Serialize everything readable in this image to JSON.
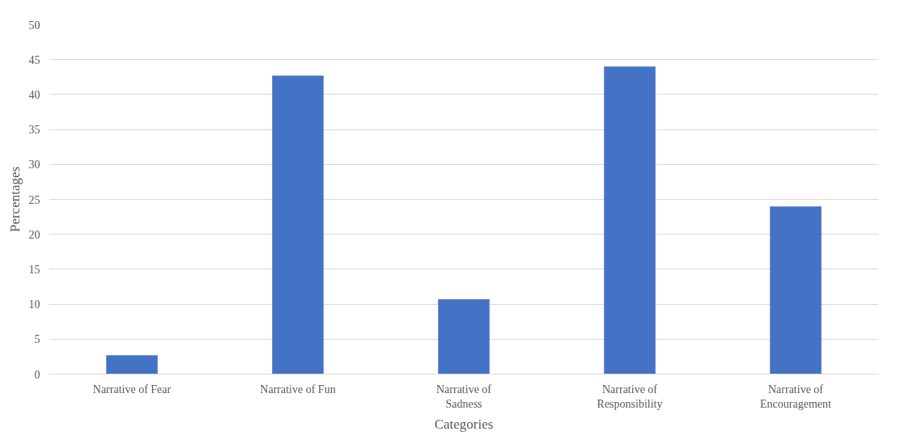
{
  "chart_data": {
    "type": "bar",
    "xlabel": "Categories",
    "ylabel": "Percentages",
    "categories": [
      "Narrative of Fear",
      "Narrative of Fun",
      "Narrative of Sadness",
      "Narrative of Responsibility",
      "Narrative of Encouragement"
    ],
    "values": [
      2.7,
      42.7,
      10.7,
      44.0,
      24.0
    ],
    "color": "#4472c4",
    "ylim": [
      0,
      50
    ],
    "yticks": [
      0,
      5,
      10,
      15,
      20,
      25,
      30,
      35,
      40,
      45,
      50
    ],
    "grid": "y"
  }
}
